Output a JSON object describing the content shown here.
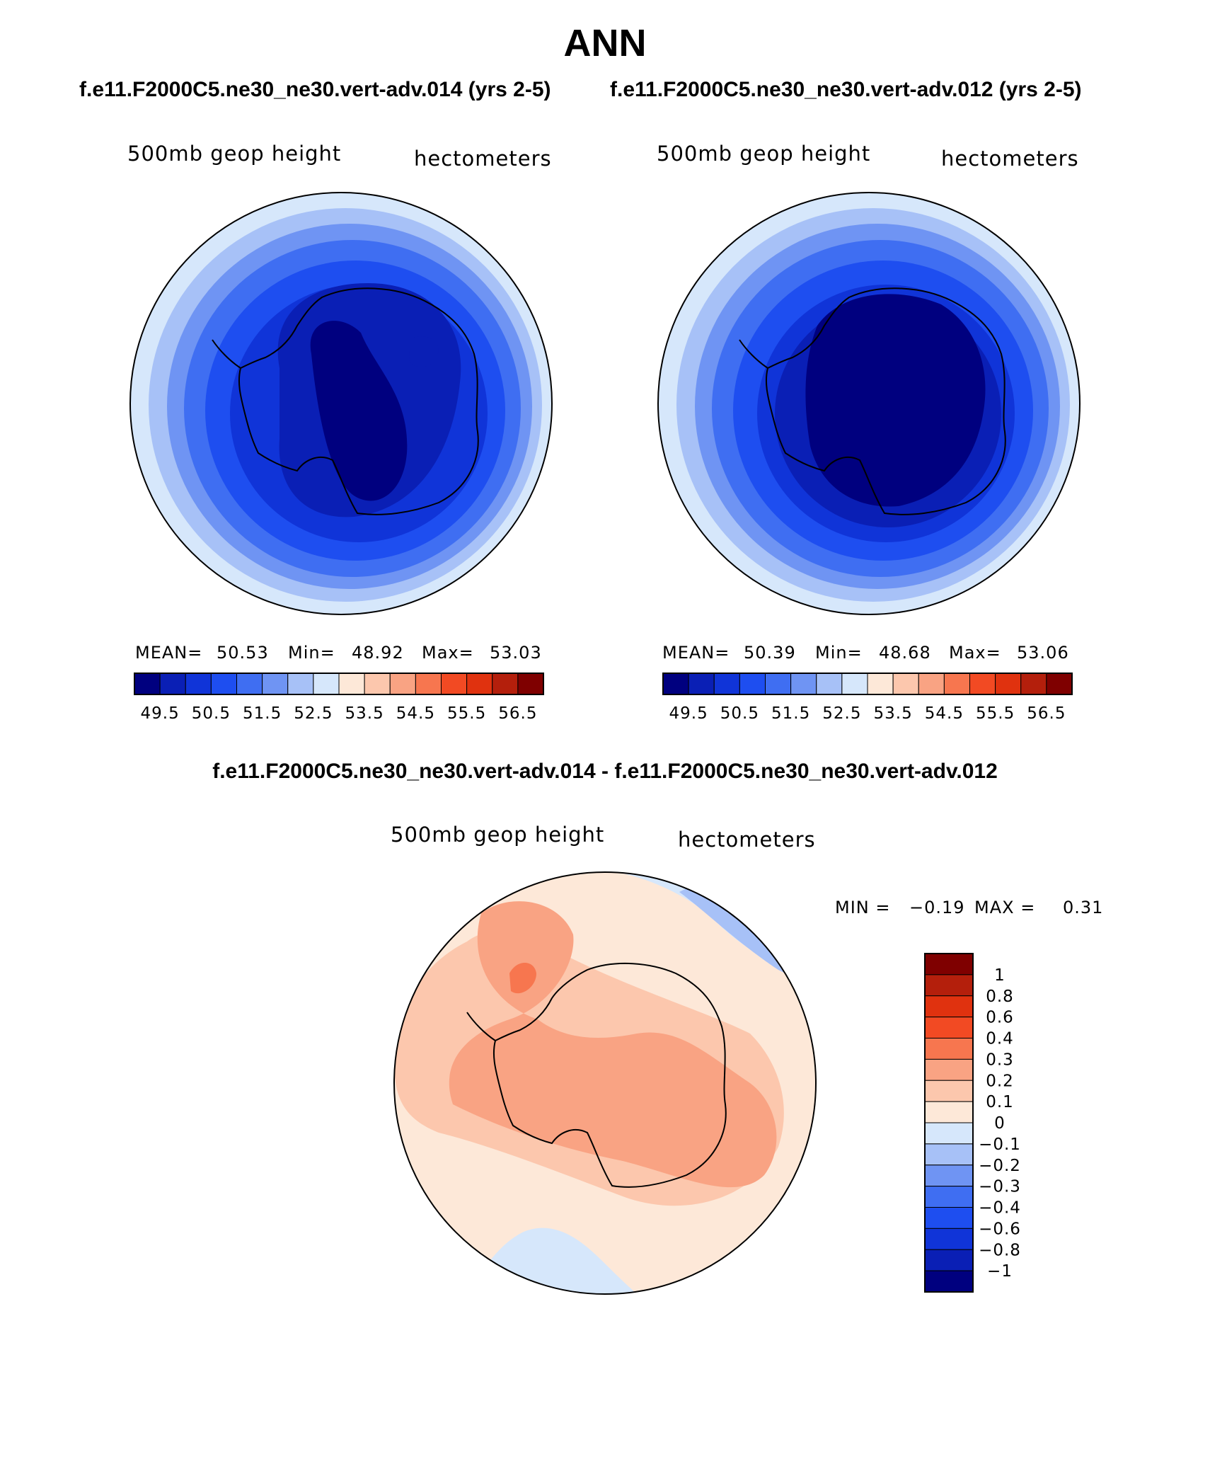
{
  "title": "ANN",
  "subtitle_left": "f.e11.F2000C5.ne30_ne30.vert-adv.014 (yrs 2-5)",
  "subtitle_right": "f.e11.F2000C5.ne30_ne30.vert-adv.012 (yrs 2-5)",
  "diff_title": "f.e11.F2000C5.ne30_ne30.vert-adv.014 - f.e11.F2000C5.ne30_ne30.vert-adv.012",
  "chart_data": [
    {
      "type": "heatmap",
      "panel": "top-left",
      "variable": "500mb geop height",
      "units": "hectometers",
      "mean_label": "MEAN=",
      "mean": "50.53",
      "min_label": "Min=",
      "min": "48.92",
      "max_label": "Max=",
      "max": "53.03",
      "colorbar_ticks": [
        "49.5",
        "50.5",
        "51.5",
        "52.5",
        "53.5",
        "54.5",
        "55.5",
        "56.5"
      ],
      "colorbar_colors": [
        "#00007f",
        "#0a1fb5",
        "#1034d8",
        "#1e4ef0",
        "#3f6ef2",
        "#6f94f3",
        "#a7c1f7",
        "#d6e7fb",
        "#fde8d8",
        "#fcc7ad",
        "#f9a383",
        "#f7764f",
        "#f24a23",
        "#e0320f",
        "#b41f0c",
        "#7f0000"
      ]
    },
    {
      "type": "heatmap",
      "panel": "top-right",
      "variable": "500mb geop height",
      "units": "hectometers",
      "mean_label": "MEAN=",
      "mean": "50.39",
      "min_label": "Min=",
      "min": "48.68",
      "max_label": "Max=",
      "max": "53.06",
      "colorbar_ticks": [
        "49.5",
        "50.5",
        "51.5",
        "52.5",
        "53.5",
        "54.5",
        "55.5",
        "56.5"
      ],
      "colorbar_colors": [
        "#00007f",
        "#0a1fb5",
        "#1034d8",
        "#1e4ef0",
        "#3f6ef2",
        "#6f94f3",
        "#a7c1f7",
        "#d6e7fb",
        "#fde8d8",
        "#fcc7ad",
        "#f9a383",
        "#f7764f",
        "#f24a23",
        "#e0320f",
        "#b41f0c",
        "#7f0000"
      ]
    },
    {
      "type": "heatmap",
      "panel": "bottom-difference",
      "variable": "500mb geop height",
      "units": "hectometers",
      "min_label": "MIN =",
      "min": "−0.19",
      "max_label": "MAX =",
      "max": "0.31",
      "colorbar_ticks": [
        "1",
        "0.8",
        "0.6",
        "0.4",
        "0.3",
        "0.2",
        "0.1",
        "0",
        "−0.1",
        "−0.2",
        "−0.3",
        "−0.4",
        "−0.6",
        "−0.8",
        "−1"
      ],
      "colorbar_colors": [
        "#7f0000",
        "#b41f0c",
        "#e0320f",
        "#f24a23",
        "#f7764f",
        "#f9a383",
        "#fcc7ad",
        "#fde8d8",
        "#d6e7fb",
        "#a7c1f7",
        "#6f94f3",
        "#3f6ef2",
        "#1e4ef0",
        "#1034d8",
        "#0a1fb5",
        "#00007f"
      ]
    }
  ]
}
